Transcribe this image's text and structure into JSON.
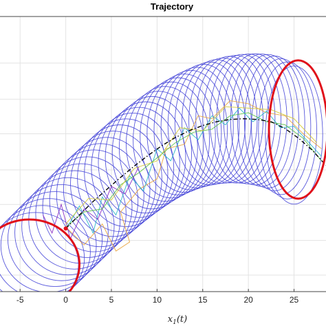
{
  "chart_data": {
    "type": "line",
    "title": "Trajectory",
    "xlabel": "x₁(t)",
    "ylabel": "",
    "xlim": [
      -7.2,
      28.5
    ],
    "ylim": [
      -9.3,
      9.0
    ],
    "x_ticks": [
      "-5",
      "0",
      "5",
      "10",
      "15",
      "20",
      "25"
    ],
    "x_tick_values": [
      -5,
      0,
      5,
      10,
      15,
      20,
      25
    ],
    "y_grid_values": [
      5.9,
      3.5,
      1.2,
      -1.2,
      -3.5,
      -5.9,
      -8.2
    ],
    "grid": true,
    "colors": {
      "tube_ellipses": "#3b3bd6",
      "highlight_ellipses": "#e0101a",
      "reference": "#000000",
      "start_marker": "#e0101a",
      "background": "#ffffff",
      "grid": "#e3e3e3"
    },
    "tube": {
      "name": "",
      "count": 42,
      "centers_x": [
        -4.0,
        25.0
      ],
      "radius_x_range": [
        5.5,
        3.2
      ],
      "radius_y_range": [
        3.0,
        4.6
      ]
    },
    "reference_path": {
      "name": "",
      "x": [
        0.0,
        1.5,
        3.0,
        4.5,
        6.0,
        7.5,
        9.0,
        10.5,
        12.0,
        13.5,
        15.0,
        16.5,
        18.0,
        19.5,
        21.0,
        22.5,
        24.0,
        25.5,
        27.0,
        28.5
      ],
      "y": [
        -5.1,
        -4.2,
        -3.3,
        -2.5,
        -1.7,
        -0.95,
        -0.25,
        0.4,
        0.95,
        1.4,
        1.75,
        2.0,
        2.15,
        2.2,
        2.15,
        2.0,
        1.55,
        0.9,
        0.1,
        -0.9
      ]
    },
    "sample_trajectories": [
      {
        "name": "",
        "color": "#e8a33c",
        "x": [
          0,
          2,
          4,
          5.5,
          7,
          6,
          8,
          10,
          11,
          13,
          14.5,
          16,
          18,
          20,
          22,
          24,
          26,
          28
        ],
        "y": [
          -5.0,
          -6.2,
          -4.8,
          -6.6,
          -6.0,
          -4.0,
          -2.5,
          -1.8,
          0.2,
          0.5,
          2.4,
          2.2,
          3.4,
          3.2,
          2.6,
          2.4,
          1.2,
          0.2
        ]
      },
      {
        "name": "",
        "color": "#29b6c8",
        "x": [
          0,
          1.5,
          3,
          4,
          5.5,
          7,
          8.5,
          10,
          11.5,
          13,
          14.5,
          16,
          17.5,
          19,
          20.5,
          22,
          23.5,
          25,
          26.5,
          28
        ],
        "y": [
          -5.2,
          -3.6,
          -5.4,
          -3.0,
          -4.2,
          -1.6,
          -2.6,
          0.2,
          -0.6,
          1.6,
          0.8,
          2.4,
          1.8,
          2.9,
          2.0,
          2.7,
          1.6,
          1.7,
          0.7,
          -0.3
        ]
      },
      {
        "name": "",
        "color": "#8a2fc4",
        "x": [
          -2.5,
          -1.5,
          -0.5,
          0.5,
          2,
          3.5,
          5,
          6.5,
          8
        ],
        "y": [
          -4.2,
          -5.4,
          -3.5,
          -5.8,
          -3.8,
          -4.5,
          -2.3,
          -2.8,
          -1.0
        ]
      },
      {
        "name": "",
        "color": "#5bbf4a",
        "x": [
          0,
          2,
          4,
          6,
          8,
          10,
          12,
          14,
          16,
          18,
          20,
          22,
          24,
          26,
          28
        ],
        "y": [
          -5.0,
          -4.0,
          -3.8,
          -2.2,
          -1.4,
          -0.4,
          0.6,
          1.3,
          1.5,
          2.4,
          2.6,
          2.0,
          1.8,
          0.9,
          -0.6
        ]
      },
      {
        "name": "",
        "color": "#d4c93a",
        "x": [
          0,
          2.5,
          5,
          7.5,
          10,
          12.5,
          15,
          17.5,
          20,
          22.5,
          25,
          27.5
        ],
        "y": [
          -4.8,
          -3.1,
          -3.2,
          -1.1,
          -0.6,
          1.6,
          1.4,
          3.0,
          2.9,
          2.8,
          2.2,
          0.6
        ]
      }
    ],
    "start_point": {
      "x": 0,
      "y": -5.1
    }
  }
}
